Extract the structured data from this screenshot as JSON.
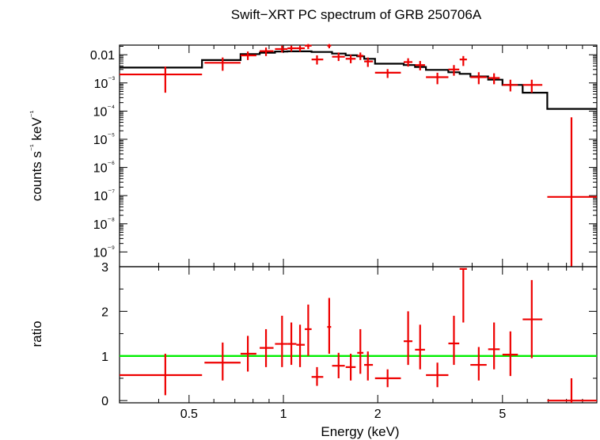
{
  "chart_data": [
    {
      "panel": "spectrum",
      "type": "scatter",
      "title": "Swift−XRT PC spectrum of GRB 250706A",
      "ylabel": "counts s⁻¹ keV⁻¹",
      "xlabel": "",
      "xscale": "log",
      "yscale": "log",
      "xlim": [
        0.3,
        10
      ],
      "ylim": [
        3e-10,
        0.022
      ],
      "ytick_labels": [
        "0.01",
        "10⁻³",
        "10⁻⁴",
        "10⁻⁵",
        "10⁻⁶",
        "10⁻⁷",
        "10⁻⁸",
        "10⁻⁹"
      ],
      "series": [
        {
          "kind": "data",
          "color": "#ee0000",
          "points": [
            {
              "x": 0.42,
              "xlo": 0.3,
              "xhi": 0.55,
              "y": 0.002,
              "ylo": 0.00045,
              "yhi": 0.0038
            },
            {
              "x": 0.64,
              "xlo": 0.56,
              "xhi": 0.73,
              "y": 0.0052,
              "ylo": 0.0027,
              "yhi": 0.008
            },
            {
              "x": 0.77,
              "xlo": 0.73,
              "xhi": 0.82,
              "y": 0.0095,
              "ylo": 0.0065,
              "yhi": 0.013
            },
            {
              "x": 0.88,
              "xlo": 0.84,
              "xhi": 0.93,
              "y": 0.0135,
              "ylo": 0.009,
              "yhi": 0.018
            },
            {
              "x": 0.99,
              "xlo": 0.94,
              "xhi": 1.03,
              "y": 0.016,
              "ylo": 0.012,
              "yhi": 0.021
            },
            {
              "x": 1.06,
              "xlo": 1.03,
              "xhi": 1.1,
              "y": 0.017,
              "ylo": 0.013,
              "yhi": 0.021
            },
            {
              "x": 1.13,
              "xlo": 1.1,
              "xhi": 1.17,
              "y": 0.017,
              "ylo": 0.013,
              "yhi": 0.021
            },
            {
              "x": 1.2,
              "xlo": 1.17,
              "xhi": 1.23,
              "y": 0.021,
              "ylo": 0.016,
              "yhi": 0.024
            },
            {
              "x": 1.28,
              "xlo": 1.23,
              "xhi": 1.34,
              "y": 0.0068,
              "ylo": 0.0045,
              "yhi": 0.0095
            },
            {
              "x": 1.4,
              "xlo": 1.38,
              "xhi": 1.42,
              "y": 0.021,
              "ylo": 0.017,
              "yhi": 0.024
            },
            {
              "x": 1.5,
              "xlo": 1.43,
              "xhi": 1.57,
              "y": 0.0085,
              "ylo": 0.006,
              "yhi": 0.012
            },
            {
              "x": 1.64,
              "xlo": 1.58,
              "xhi": 1.7,
              "y": 0.0072,
              "ylo": 0.005,
              "yhi": 0.01
            },
            {
              "x": 1.76,
              "xlo": 1.72,
              "xhi": 1.8,
              "y": 0.0092,
              "ylo": 0.0065,
              "yhi": 0.012
            },
            {
              "x": 1.86,
              "xlo": 1.81,
              "xhi": 1.93,
              "y": 0.0058,
              "ylo": 0.0037,
              "yhi": 0.008
            },
            {
              "x": 2.15,
              "xlo": 1.96,
              "xhi": 2.37,
              "y": 0.0023,
              "ylo": 0.0015,
              "yhi": 0.0031
            },
            {
              "x": 2.5,
              "xlo": 2.42,
              "xhi": 2.58,
              "y": 0.0055,
              "ylo": 0.0038,
              "yhi": 0.0075
            },
            {
              "x": 2.73,
              "xlo": 2.63,
              "xhi": 2.83,
              "y": 0.0043,
              "ylo": 0.0028,
              "yhi": 0.006
            },
            {
              "x": 3.1,
              "xlo": 2.85,
              "xhi": 3.36,
              "y": 0.0016,
              "ylo": 0.0009,
              "yhi": 0.0023
            },
            {
              "x": 3.5,
              "xlo": 3.36,
              "xhi": 3.64,
              "y": 0.003,
              "ylo": 0.0018,
              "yhi": 0.0043
            },
            {
              "x": 3.75,
              "xlo": 3.65,
              "xhi": 3.85,
              "y": 0.0068,
              "ylo": 0.004,
              "yhi": 0.009
            },
            {
              "x": 4.2,
              "xlo": 3.95,
              "xhi": 4.45,
              "y": 0.0016,
              "ylo": 0.0009,
              "yhi": 0.0024
            },
            {
              "x": 4.7,
              "xlo": 4.5,
              "xhi": 4.9,
              "y": 0.0015,
              "ylo": 0.0009,
              "yhi": 0.0022
            },
            {
              "x": 5.3,
              "xlo": 5.0,
              "xhi": 5.6,
              "y": 0.00085,
              "ylo": 0.0005,
              "yhi": 0.0013
            },
            {
              "x": 6.2,
              "xlo": 5.8,
              "xhi": 6.7,
              "y": 0.00085,
              "ylo": 0.00045,
              "yhi": 0.0013
            },
            {
              "x": 8.3,
              "xlo": 6.95,
              "xhi": 10.0,
              "y": 9e-08,
              "ylo": 3e-10,
              "yhi": 6e-05
            }
          ]
        },
        {
          "kind": "model",
          "color": "#000000",
          "steps": [
            {
              "x0": 0.3,
              "x1": 0.55,
              "y": 0.0035
            },
            {
              "x0": 0.55,
              "x1": 0.73,
              "y": 0.0065
            },
            {
              "x0": 0.73,
              "x1": 0.84,
              "y": 0.0105
            },
            {
              "x0": 0.84,
              "x1": 0.94,
              "y": 0.0118
            },
            {
              "x0": 0.94,
              "x1": 1.03,
              "y": 0.013
            },
            {
              "x0": 1.03,
              "x1": 1.23,
              "y": 0.0132
            },
            {
              "x0": 1.23,
              "x1": 1.43,
              "y": 0.0125
            },
            {
              "x0": 1.43,
              "x1": 1.58,
              "y": 0.011
            },
            {
              "x0": 1.58,
              "x1": 1.72,
              "y": 0.0096
            },
            {
              "x0": 1.72,
              "x1": 1.81,
              "y": 0.0088
            },
            {
              "x0": 1.81,
              "x1": 1.96,
              "y": 0.0072
            },
            {
              "x0": 1.96,
              "x1": 2.42,
              "y": 0.0048
            },
            {
              "x0": 2.42,
              "x1": 2.63,
              "y": 0.0043
            },
            {
              "x0": 2.63,
              "x1": 2.85,
              "y": 0.0037
            },
            {
              "x0": 2.85,
              "x1": 3.36,
              "y": 0.0029
            },
            {
              "x0": 3.36,
              "x1": 3.65,
              "y": 0.0024
            },
            {
              "x0": 3.65,
              "x1": 3.95,
              "y": 0.0021
            },
            {
              "x0": 3.95,
              "x1": 4.5,
              "y": 0.0017
            },
            {
              "x0": 4.5,
              "x1": 5.0,
              "y": 0.0013
            },
            {
              "x0": 5.0,
              "x1": 5.8,
              "y": 0.00085
            },
            {
              "x0": 5.8,
              "x1": 6.95,
              "y": 0.00045
            },
            {
              "x0": 6.95,
              "x1": 10.0,
              "y": 0.00012
            }
          ]
        }
      ]
    },
    {
      "panel": "ratio",
      "type": "scatter",
      "ylabel": "ratio",
      "xlabel": "Energy (keV)",
      "xscale": "log",
      "xlim": [
        0.3,
        10
      ],
      "ylim": [
        -0.05,
        3.0
      ],
      "ytick_labels": [
        "0",
        "1",
        "2",
        "3"
      ],
      "xtick_labels": [
        "0.5",
        "1",
        "2",
        "5"
      ],
      "xticks": [
        0.5,
        1,
        2,
        5
      ],
      "reference_line": {
        "y": 1,
        "color": "#00ee00"
      },
      "series": [
        {
          "kind": "ratio",
          "color": "#ee0000",
          "points": [
            {
              "x": 0.42,
              "xlo": 0.3,
              "xhi": 0.55,
              "y": 0.57,
              "ylo": 0.12,
              "yhi": 1.05
            },
            {
              "x": 0.64,
              "xlo": 0.56,
              "xhi": 0.73,
              "y": 0.85,
              "ylo": 0.45,
              "yhi": 1.3
            },
            {
              "x": 0.77,
              "xlo": 0.73,
              "xhi": 0.82,
              "y": 1.05,
              "ylo": 0.65,
              "yhi": 1.45
            },
            {
              "x": 0.88,
              "xlo": 0.84,
              "xhi": 0.93,
              "y": 1.18,
              "ylo": 0.75,
              "yhi": 1.6
            },
            {
              "x": 0.99,
              "xlo": 0.94,
              "xhi": 1.03,
              "y": 1.27,
              "ylo": 0.75,
              "yhi": 1.9
            },
            {
              "x": 1.06,
              "xlo": 1.03,
              "xhi": 1.1,
              "y": 1.27,
              "ylo": 0.8,
              "yhi": 1.75
            },
            {
              "x": 1.13,
              "xlo": 1.1,
              "xhi": 1.17,
              "y": 1.25,
              "ylo": 0.75,
              "yhi": 1.7
            },
            {
              "x": 1.2,
              "xlo": 1.17,
              "xhi": 1.23,
              "y": 1.6,
              "ylo": 1.0,
              "yhi": 2.15
            },
            {
              "x": 1.28,
              "xlo": 1.23,
              "xhi": 1.34,
              "y": 0.53,
              "ylo": 0.33,
              "yhi": 0.75
            },
            {
              "x": 1.4,
              "xlo": 1.38,
              "xhi": 1.42,
              "y": 1.65,
              "ylo": 1.05,
              "yhi": 2.3
            },
            {
              "x": 1.5,
              "xlo": 1.43,
              "xhi": 1.57,
              "y": 0.78,
              "ylo": 0.5,
              "yhi": 1.07
            },
            {
              "x": 1.64,
              "xlo": 1.58,
              "xhi": 1.7,
              "y": 0.75,
              "ylo": 0.45,
              "yhi": 1.05
            },
            {
              "x": 1.76,
              "xlo": 1.72,
              "xhi": 1.8,
              "y": 1.07,
              "ylo": 0.6,
              "yhi": 1.6
            },
            {
              "x": 1.86,
              "xlo": 1.81,
              "xhi": 1.93,
              "y": 0.8,
              "ylo": 0.45,
              "yhi": 1.1
            },
            {
              "x": 2.15,
              "xlo": 1.96,
              "xhi": 2.37,
              "y": 0.5,
              "ylo": 0.3,
              "yhi": 0.7
            },
            {
              "x": 2.5,
              "xlo": 2.42,
              "xhi": 2.58,
              "y": 1.33,
              "ylo": 0.8,
              "yhi": 2.0
            },
            {
              "x": 2.73,
              "xlo": 2.63,
              "xhi": 2.83,
              "y": 1.14,
              "ylo": 0.7,
              "yhi": 1.7
            },
            {
              "x": 3.1,
              "xlo": 2.85,
              "xhi": 3.36,
              "y": 0.57,
              "ylo": 0.3,
              "yhi": 0.85
            },
            {
              "x": 3.5,
              "xlo": 3.36,
              "xhi": 3.64,
              "y": 1.28,
              "ylo": 0.8,
              "yhi": 1.9
            },
            {
              "x": 3.75,
              "xlo": 3.65,
              "xhi": 3.85,
              "y": 2.95,
              "ylo": 1.75,
              "yhi": 2.95
            },
            {
              "x": 4.2,
              "xlo": 3.95,
              "xhi": 4.45,
              "y": 0.8,
              "ylo": 0.45,
              "yhi": 1.2
            },
            {
              "x": 4.7,
              "xlo": 4.5,
              "xhi": 4.9,
              "y": 1.15,
              "ylo": 0.7,
              "yhi": 1.75
            },
            {
              "x": 5.3,
              "xlo": 5.0,
              "xhi": 5.6,
              "y": 1.03,
              "ylo": 0.55,
              "yhi": 1.55
            },
            {
              "x": 6.2,
              "xlo": 5.8,
              "xhi": 6.7,
              "y": 1.82,
              "ylo": 0.95,
              "yhi": 2.7
            },
            {
              "x": 8.3,
              "xlo": 6.95,
              "xhi": 10.0,
              "y": 0.0,
              "ylo": -0.05,
              "yhi": 0.5
            }
          ]
        }
      ]
    }
  ]
}
